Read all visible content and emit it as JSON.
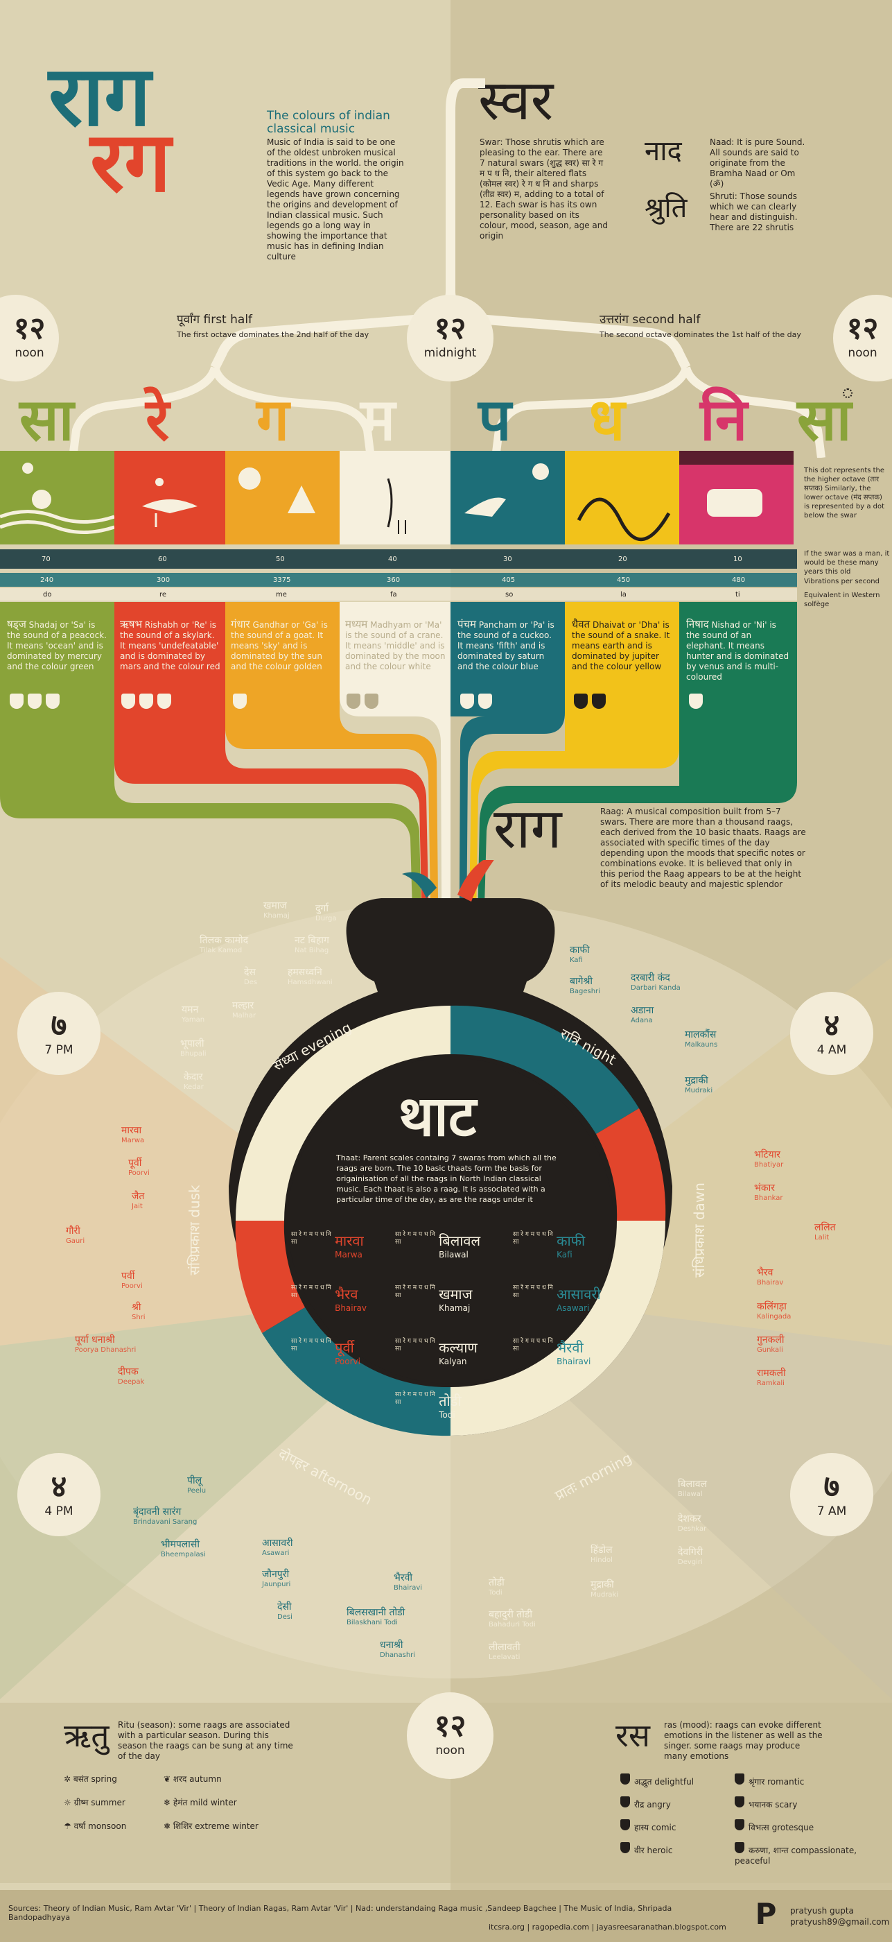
{
  "title": {
    "raag1": "राग",
    "raag2": "रग",
    "subtitle": "The colours of indian classical music",
    "intro": "Music of India is said to be one of the oldest unbroken musical traditions in the world. the origin of this system go back to the Vedic Age. Many different legends have grown concerning the origins and development of Indian classical music. Such legends go a long way in showing the importance that music has in defining Indian culture"
  },
  "swar": {
    "heading": "स्वर",
    "text": "Swar: Those shrutis which are pleasing to the ear. There are 7 natural swars (शुद्ध स्वर) सा रे ग म प ध नि, their altered flats (कोमल स्वर) रे ग ध नि and sharps (तीव्र स्वर) म, adding to a total of 12. Each swar is has its own personality based on its colour, mood, season, age and origin",
    "naad": "नाद",
    "naad_text": "Naad: It is pure Sound. All sounds are said to originate from the Bramha Naad or Om (ॐ)",
    "shruti": "श्रुति",
    "shruti_text": "Shruti: Those sounds which we can clearly hear and distinguish. There are 22 shrutis"
  },
  "octaves": {
    "first_deva": "पूर्वांग",
    "first_en": "first half",
    "first_desc": "The first octave dominates the 2nd half of the day",
    "second_deva": "उत्तरांग",
    "second_en": "second half",
    "second_desc": "The second octave dominates the 1st half of the day"
  },
  "clocks": {
    "noon_left": {
      "num": "१२",
      "label": "noon"
    },
    "midnight": {
      "num": "१२",
      "label": "midnight"
    },
    "noon_right": {
      "num": "१२",
      "label": "noon"
    },
    "pm7": {
      "num": "७",
      "label": "7 PM"
    },
    "am4": {
      "num": "४",
      "label": "4 AM"
    },
    "pm4": {
      "num": "४",
      "label": "4 PM"
    },
    "am7": {
      "num": "७",
      "label": "7 AM"
    },
    "noon_bottom": {
      "num": "१२",
      "label": "noon"
    }
  },
  "swars": [
    {
      "letter": "सा",
      "color": "#8aa33a",
      "age": "70",
      "vib": "240",
      "west": "do",
      "name": "षड्ज",
      "desc": "Shadaj or 'Sa' is the sound of a peacock. It means 'ocean' and is dominated by mercury and the colour green"
    },
    {
      "letter": "रे",
      "color": "#e2452c",
      "age": "60",
      "vib": "300",
      "west": "re",
      "name": "ऋषभ",
      "desc": "Rishabh or 'Re' is the sound of a skylark. It means 'undefeatable' and is dominated by mars and the colour red"
    },
    {
      "letter": "ग",
      "color": "#eea526",
      "age": "50",
      "vib": "3375",
      "west": "me",
      "name": "गंधार",
      "desc": "Gandhar or 'Ga' is the sound of a goat. It means 'sky' and is dominated by the sun and the colour golden"
    },
    {
      "letter": "म",
      "color": "#f6f0de",
      "age": "40",
      "vib": "360",
      "west": "fa",
      "name": "मध्यम",
      "desc": "Madhyam or 'Ma' is the sound of a crane. It means 'middle' and is dominated by the moon and the colour white"
    },
    {
      "letter": "प",
      "color": "#1d6e78",
      "age": "30",
      "vib": "405",
      "west": "so",
      "name": "पंचम",
      "desc": "Pancham or 'Pa' is the sound of a cuckoo. It means 'fifth' and is dominated by saturn and the colour blue"
    },
    {
      "letter": "ध",
      "color": "#f2c21a",
      "age": "20",
      "vib": "450",
      "west": "la",
      "name": "धैवत",
      "desc": "Dhaivat or 'Dha' is the sound of a snake. It means earth and is dominated by jupiter and the colour yellow"
    },
    {
      "letter": "नि",
      "color": "#d7356a",
      "age": "10",
      "vib": "480",
      "west": "ti",
      "name": "निषाद",
      "desc": "Nishad or 'Ni' is the sound of an elephant. It means hunter and is dominated by venus and is multi-coloured"
    }
  ],
  "sa_upper": "सा",
  "legend_rows": {
    "dot_note": "This dot represents the the higher octave (तार सप्तक) Similarly, the lower octave (मंद सप्तक) is represented by a dot below the swar",
    "age": "If the swar was a man, it would be these many years this old",
    "vib": "Vibrations per second",
    "west": "Equivalent in Western solfège"
  },
  "raag": {
    "heading": "राग",
    "text": "Raag: A musical composition built from 5–7 swars. There are more than a thousand raags, each derived from the 10 basic thaats. Raags are associated with specific times of the day depending upon the moods that specific notes or combinations evoke. It is believed that only in this period the Raag appears to be at the height of its melodic beauty and majestic splendor"
  },
  "thaat": {
    "heading": "थाट",
    "text": "Thaat: Parent scales containg 7 swaras from which all the raags are born. The 10 basic thaats form the basis for origainisation of all the raags in North Indian classical music. Each thaat is also a raag. It is associated with a particular time of the day, as are the raags under it",
    "swar_notation": "सा रे ग म प ध नि सा",
    "items": [
      {
        "deva": "मारवा",
        "en": "Marwa",
        "color": "#e2452c"
      },
      {
        "deva": "बिलावल",
        "en": "Bilawal",
        "color": "#f6f0de"
      },
      {
        "deva": "काफी",
        "en": "Kafi",
        "color": "#2a8a94"
      },
      {
        "deva": "भैरव",
        "en": "Bhairav",
        "color": "#e2452c"
      },
      {
        "deva": "खमाज",
        "en": "Khamaj",
        "color": "#f6f0de"
      },
      {
        "deva": "आसावरी",
        "en": "Asawari",
        "color": "#2a8a94"
      },
      {
        "deva": "पूर्वी",
        "en": "Poorvi",
        "color": "#e2452c"
      },
      {
        "deva": "कल्याण",
        "en": "Kalyan",
        "color": "#f6f0de"
      },
      {
        "deva": "भैरवी",
        "en": "Bhairavi",
        "color": "#2a8a94"
      },
      {
        "deva": "तोडी",
        "en": "Todi",
        "color": "#f6f0de"
      }
    ]
  },
  "ring_labels": {
    "evening": "संध्या evening",
    "night": "रात्रि night",
    "dusk": "संधिप्रकाश dusk",
    "dawn": "संधिप्रकाश dawn",
    "afternoon": "दोपहर afternoon",
    "morning": "प्रातः morning"
  },
  "raags_evening": [
    {
      "deva": "खमाज",
      "en": "Khamaj"
    },
    {
      "deva": "दुर्गा",
      "en": "Durga"
    },
    {
      "deva": "तिलक कामोद",
      "en": "Tilak Kamod"
    },
    {
      "deva": "नट बिहाग",
      "en": "Nat Bihag"
    },
    {
      "deva": "देस",
      "en": "Des"
    },
    {
      "deva": "हमसध्वनि",
      "en": "Hamsdhwani"
    },
    {
      "deva": "यमन",
      "en": "Yaman"
    },
    {
      "deva": "मल्हार",
      "en": "Malhar"
    },
    {
      "deva": "भूपाली",
      "en": "Bhupali"
    },
    {
      "deva": "केदार",
      "en": "Kedar"
    }
  ],
  "raags_night": [
    {
      "deva": "काफी",
      "en": "Kafi"
    },
    {
      "deva": "बागेश्री",
      "en": "Bageshri"
    },
    {
      "deva": "दरबारी कंद",
      "en": "Darbari Kanda"
    },
    {
      "deva": "अडाना",
      "en": "Adana"
    },
    {
      "deva": "मालकौंस",
      "en": "Malkauns"
    },
    {
      "deva": "मुद्राकी",
      "en": "Mudraki"
    }
  ],
  "raags_dusk": [
    {
      "deva": "मारवा",
      "en": "Marwa"
    },
    {
      "deva": "पूर्वी",
      "en": "Poorvi"
    },
    {
      "deva": "जैत",
      "en": "Jait"
    },
    {
      "deva": "गौरी",
      "en": "Gauri"
    },
    {
      "deva": "पर्वी",
      "en": "Poorvi"
    },
    {
      "deva": "श्री",
      "en": "Shri"
    },
    {
      "deva": "पूर्या धनाश्री",
      "en": "Poorya Dhanashri"
    },
    {
      "deva": "दीपक",
      "en": "Deepak"
    }
  ],
  "raags_dawn": [
    {
      "deva": "भटियार",
      "en": "Bhatiyar"
    },
    {
      "deva": "भंकार",
      "en": "Bhankar"
    },
    {
      "deva": "ललित",
      "en": "Lalit"
    },
    {
      "deva": "भैरव",
      "en": "Bhairav"
    },
    {
      "deva": "कलिंगड़ा",
      "en": "Kalingada"
    },
    {
      "deva": "गुनकली",
      "en": "Gunkali"
    },
    {
      "deva": "रामकली",
      "en": "Ramkali"
    }
  ],
  "raags_afternoon": [
    {
      "deva": "पीलू",
      "en": "Peelu"
    },
    {
      "deva": "बृंदावनी सारंग",
      "en": "Brindavani Sarang"
    },
    {
      "deva": "भीमपलासी",
      "en": "Bheempalasi"
    },
    {
      "deva": "आसावरी",
      "en": "Asawari"
    },
    {
      "deva": "जौनपुरी",
      "en": "Jaunpuri"
    },
    {
      "deva": "देसी",
      "en": "Desi"
    },
    {
      "deva": "भैरवी",
      "en": "Bhairavi"
    },
    {
      "deva": "बिलसखानी तोडी",
      "en": "Bilaskhani Todi"
    },
    {
      "deva": "धनाश्री",
      "en": "Dhanashri"
    }
  ],
  "raags_morning": [
    {
      "deva": "बिलावल",
      "en": "Bilawal"
    },
    {
      "deva": "देशकर",
      "en": "Deshkar"
    },
    {
      "deva": "देवगिरी",
      "en": "Devgiri"
    },
    {
      "deva": "हिंडोल",
      "en": "Hindol"
    },
    {
      "deva": "मुद्राकी",
      "en": "Mudraki"
    },
    {
      "deva": "तोडी",
      "en": "Todi"
    },
    {
      "deva": "बहादुरी तोडी",
      "en": "Bahaduri Todi"
    },
    {
      "deva": "लीलावती",
      "en": "Leelavati"
    }
  ],
  "ritu": {
    "heading": "ऋतु",
    "text": "Ritu (season): some raags are associated with a particular season. During this season the raags can be sung at any time of the day",
    "items": [
      "बसंत spring",
      "शरद autumn",
      "ग्रीष्म summer",
      "हेमंत mild winter",
      "वर्षा monsoon",
      "शिशिर extreme winter"
    ]
  },
  "ras": {
    "heading": "रस",
    "text": "ras (mood): raags can evoke different emotions in the listener as well as the singer. some raags may produce many emotions",
    "items": [
      "अद्भुत delightful",
      "श्रृंगार romantic",
      "रौद्र angry",
      "भयानक scary",
      "हास्य comic",
      "विभत्स grotesque",
      "वीर heroic",
      "करुणा, शान्त compassionate, peaceful"
    ]
  },
  "footer": {
    "sources": "Sources: Theory of Indian Music, Ram Avtar 'Vir' | Theory of Indian Ragas, Ram Avtar 'Vir' | Nad: understandaing Raga music ,Sandeep Bagchee | The Music of India, Shripada Bandopadhyaya",
    "links": "itcsra.org | ragopedia.com | jayasreesaranathan.blogspot.com",
    "author": "pratyush gupta",
    "email": "pratyush89@gmail.com",
    "logo_letter": "P"
  },
  "colors": {
    "red": "#e2452c",
    "teal": "#1d6e78",
    "green": "#8aa33a",
    "orange": "#eea526",
    "yellow": "#f2c21a",
    "pink": "#d7356a",
    "dark": "#231f1c",
    "cream": "#f6f0de"
  }
}
